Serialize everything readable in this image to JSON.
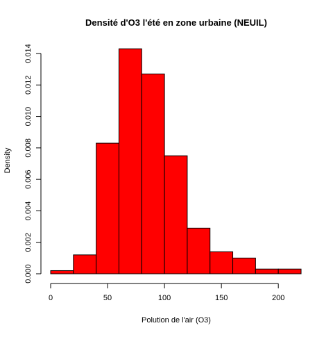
{
  "chart_data": {
    "type": "bar",
    "title": "Densité d'O3 l'été en zone urbaine (NEUIL)",
    "xlabel": "Polution de l'air (O3)",
    "ylabel": "Density",
    "bins": [
      {
        "from": 0,
        "to": 20,
        "density": 0.0002
      },
      {
        "from": 20,
        "to": 40,
        "density": 0.0012
      },
      {
        "from": 40,
        "to": 60,
        "density": 0.0083
      },
      {
        "from": 60,
        "to": 80,
        "density": 0.0143
      },
      {
        "from": 80,
        "to": 100,
        "density": 0.0127
      },
      {
        "from": 100,
        "to": 120,
        "density": 0.0075
      },
      {
        "from": 120,
        "to": 140,
        "density": 0.0029
      },
      {
        "from": 140,
        "to": 160,
        "density": 0.0014
      },
      {
        "from": 160,
        "to": 180,
        "density": 0.001
      },
      {
        "from": 180,
        "to": 200,
        "density": 0.0003
      },
      {
        "from": 200,
        "to": 220,
        "density": 0.0003
      }
    ],
    "x_ticks": [
      "0",
      "50",
      "100",
      "150",
      "200"
    ],
    "y_ticks": [
      "0.000",
      "0.002",
      "0.004",
      "0.006",
      "0.008",
      "0.010",
      "0.012",
      "0.014"
    ],
    "xlim": [
      0,
      220
    ],
    "ylim": [
      0,
      0.014
    ],
    "bar_color": "#ff0000",
    "grid": false,
    "legend": false
  }
}
